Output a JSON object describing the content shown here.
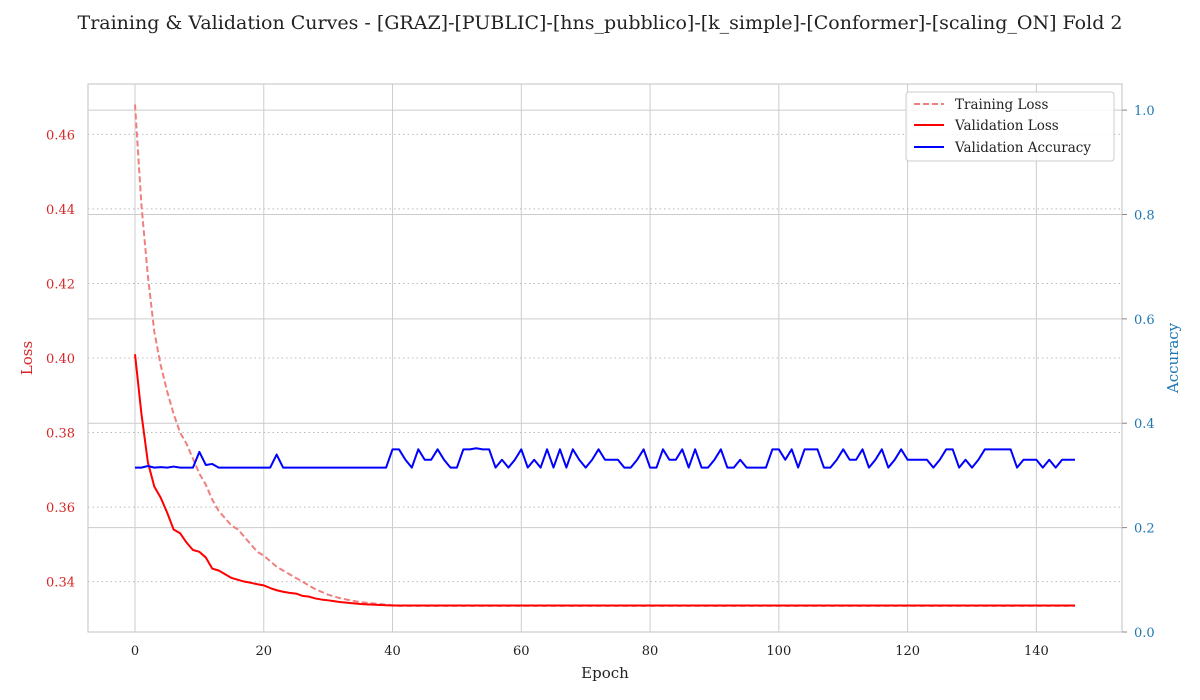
{
  "chart_data": {
    "type": "line",
    "title": "Training & Validation Curves - [GRAZ]-[PUBLIC]-[hns_pubblico]-[k_simple]-[Conformer]-[scaling_ON] Fold 2",
    "xlabel": "Epoch",
    "ylabel_left": "Loss",
    "ylabel_right": "Accuracy",
    "xlim": [
      -7.3,
      153.3
    ],
    "ylim_left": [
      0.3265,
      0.4735
    ],
    "ylim_right": [
      0.0,
      1.05
    ],
    "x_ticks": [
      0,
      20,
      40,
      60,
      80,
      100,
      120,
      140
    ],
    "y_ticks_left": [
      0.34,
      0.36,
      0.38,
      0.4,
      0.42,
      0.44,
      0.46
    ],
    "y_ticks_right": [
      0.0,
      0.2,
      0.4,
      0.6,
      0.8,
      1.0
    ],
    "grid": true,
    "legend_position": "top-right",
    "colors": {
      "training_loss": "#f08080",
      "validation_loss": "#ff0000",
      "validation_accuracy": "#0000ff",
      "left_axis": "#d62728",
      "right_axis": "#1f77b4"
    },
    "series": [
      {
        "name": "Training Loss",
        "axis": "left",
        "style": "dashed",
        "color": "#f08080",
        "keypoints": [
          [
            0,
            0.468
          ],
          [
            1,
            0.441
          ],
          [
            2,
            0.422
          ],
          [
            3,
            0.407
          ],
          [
            4,
            0.398
          ],
          [
            5,
            0.391
          ],
          [
            6,
            0.385
          ],
          [
            7,
            0.38
          ],
          [
            8,
            0.377
          ],
          [
            9,
            0.373
          ],
          [
            10,
            0.369
          ],
          [
            11,
            0.366
          ],
          [
            12,
            0.362
          ],
          [
            13,
            0.359
          ],
          [
            14,
            0.357
          ],
          [
            15,
            0.355
          ],
          [
            16,
            0.354
          ],
          [
            17,
            0.352
          ],
          [
            18,
            0.35
          ],
          [
            19,
            0.348
          ],
          [
            20,
            0.347
          ],
          [
            22,
            0.344
          ],
          [
            24,
            0.342
          ],
          [
            26,
            0.34
          ],
          [
            28,
            0.338
          ],
          [
            30,
            0.3365
          ],
          [
            32,
            0.3355
          ],
          [
            35,
            0.3345
          ],
          [
            38,
            0.334
          ],
          [
            41,
            0.3335
          ],
          [
            50,
            0.3335
          ],
          [
            146,
            0.3335
          ]
        ]
      },
      {
        "name": "Validation Loss",
        "axis": "left",
        "style": "solid",
        "color": "#ff0000",
        "keypoints": [
          [
            0,
            0.401
          ],
          [
            1,
            0.385
          ],
          [
            2,
            0.372
          ],
          [
            3,
            0.3655
          ],
          [
            4,
            0.3625
          ],
          [
            5,
            0.3585
          ],
          [
            6,
            0.354
          ],
          [
            7,
            0.353
          ],
          [
            8,
            0.3505
          ],
          [
            9,
            0.3485
          ],
          [
            10,
            0.348
          ],
          [
            11,
            0.3465
          ],
          [
            12,
            0.3435
          ],
          [
            13,
            0.343
          ],
          [
            14,
            0.342
          ],
          [
            15,
            0.341
          ],
          [
            16,
            0.3405
          ],
          [
            17,
            0.34
          ],
          [
            18,
            0.3397
          ],
          [
            19,
            0.3393
          ],
          [
            20,
            0.339
          ],
          [
            21,
            0.3383
          ],
          [
            22,
            0.3377
          ],
          [
            23,
            0.3373
          ],
          [
            24,
            0.337
          ],
          [
            25,
            0.3368
          ],
          [
            26,
            0.3362
          ],
          [
            27,
            0.336
          ],
          [
            28,
            0.3355
          ],
          [
            29,
            0.3352
          ],
          [
            30,
            0.335
          ],
          [
            32,
            0.3345
          ],
          [
            35,
            0.334
          ],
          [
            40,
            0.3336
          ],
          [
            146,
            0.3336
          ]
        ]
      },
      {
        "name": "Validation Accuracy",
        "axis": "right",
        "style": "solid",
        "color": "#0000ff",
        "values": [
          0.315,
          0.315,
          0.318,
          0.315,
          0.316,
          0.315,
          0.317,
          0.315,
          0.315,
          0.315,
          0.345,
          0.32,
          0.322,
          0.315,
          0.315,
          0.315,
          0.315,
          0.315,
          0.315,
          0.315,
          0.315,
          0.315,
          0.34,
          0.315,
          0.315,
          0.315,
          0.315,
          0.315,
          0.315,
          0.315,
          0.315,
          0.315,
          0.315,
          0.315,
          0.315,
          0.315,
          0.315,
          0.315,
          0.315,
          0.315,
          0.35,
          0.35,
          0.33,
          0.315,
          0.35,
          0.33,
          0.33,
          0.35,
          0.33,
          0.315,
          0.315,
          0.35,
          0.35,
          0.352,
          0.35,
          0.35,
          0.315,
          0.33,
          0.315,
          0.33,
          0.35,
          0.315,
          0.33,
          0.315,
          0.35,
          0.315,
          0.35,
          0.315,
          0.35,
          0.33,
          0.315,
          0.33,
          0.35,
          0.33,
          0.33,
          0.33,
          0.315,
          0.315,
          0.33,
          0.35,
          0.315,
          0.315,
          0.35,
          0.33,
          0.33,
          0.35,
          0.315,
          0.35,
          0.315,
          0.315,
          0.33,
          0.35,
          0.315,
          0.315,
          0.33,
          0.315,
          0.315,
          0.315,
          0.315,
          0.35,
          0.35,
          0.33,
          0.35,
          0.315,
          0.35,
          0.35,
          0.35,
          0.315,
          0.315,
          0.33,
          0.35,
          0.33,
          0.33,
          0.35,
          0.315,
          0.33,
          0.35,
          0.315,
          0.33,
          0.35,
          0.33,
          0.33,
          0.33,
          0.33,
          0.315,
          0.33,
          0.35,
          0.35,
          0.315,
          0.33,
          0.315,
          0.33,
          0.35,
          0.35,
          0.35,
          0.35,
          0.35,
          0.315,
          0.33,
          0.33,
          0.33,
          0.315,
          0.33,
          0.315,
          0.33,
          0.33,
          0.33
        ]
      }
    ]
  }
}
